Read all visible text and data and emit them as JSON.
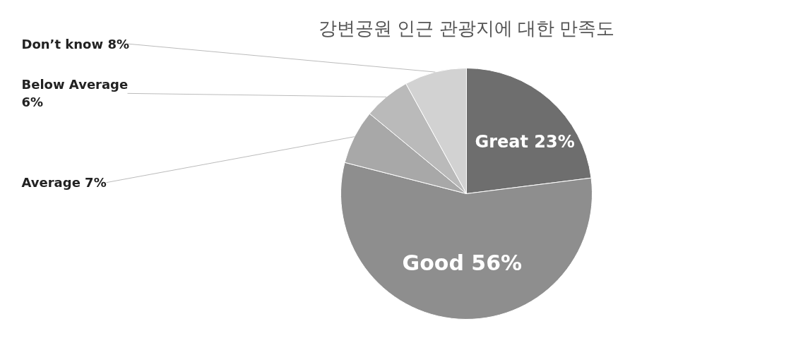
{
  "chart_data": {
    "type": "pie",
    "title": "강변공원 인근 관광지에 대한 만족도",
    "categories": [
      "Great",
      "Good",
      "Average",
      "Below Average",
      "Don’t know"
    ],
    "values": [
      23,
      56,
      7,
      6,
      8
    ],
    "colors": [
      "#6e6e6e",
      "#8e8e8e",
      "#a8a8a8",
      "#bababa",
      "#d2d2d2"
    ],
    "value_labels": [
      "23%",
      "56%",
      "7%",
      "6%",
      "8%"
    ]
  }
}
